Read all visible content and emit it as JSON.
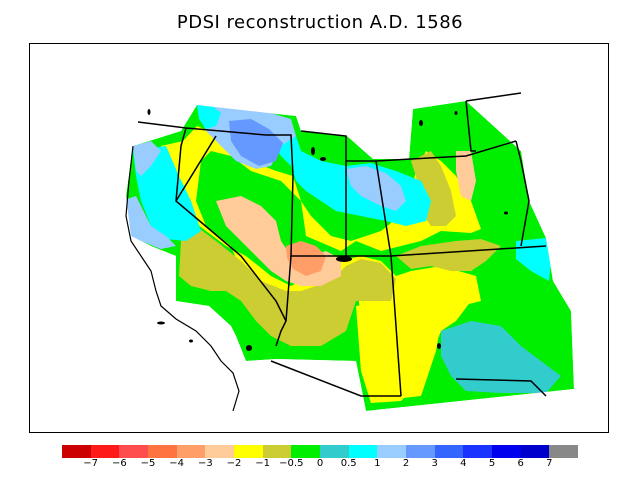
{
  "title": "PDSI reconstruction A.D. 1586",
  "legend": {
    "colors": [
      "#cc0000",
      "#ff1a1a",
      "#ff4d4d",
      "#ff7340",
      "#ff9e66",
      "#ffcc99",
      "#ffff00",
      "#cccc33",
      "#00ee00",
      "#33cccc",
      "#00ffff",
      "#99ccff",
      "#6699ff",
      "#3366ff",
      "#1a33ff",
      "#0000ee",
      "#0000cc",
      "#888888"
    ],
    "labels": [
      "−7",
      "−6",
      "−5",
      "−4",
      "−3",
      "−2",
      "−1",
      "−0.5",
      "0",
      "0.5",
      "1",
      "2",
      "3",
      "4",
      "5",
      "6",
      "7"
    ]
  },
  "map_regions": {
    "description_colors": {
      "wet_strong": "#6699ff",
      "wet": "#99ccff",
      "moist": "#00ffff",
      "near_normal_wet": "#33cccc",
      "normal": "#00ee00",
      "slight_dry": "#cccc33",
      "dry": "#ffff00",
      "drier": "#ffcc99",
      "very_dry": "#ff9e66"
    }
  }
}
